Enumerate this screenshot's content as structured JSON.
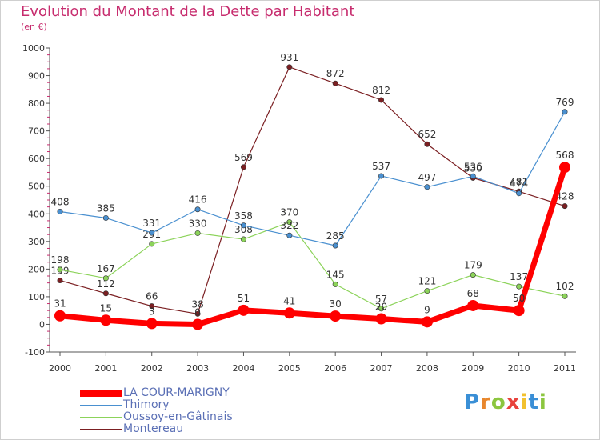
{
  "header": {
    "title": "Evolution du Montant de la Dette par Habitant",
    "subtitle": "(en €)"
  },
  "logo": {
    "text": "Proxiti",
    "letter_colors": [
      "#3a8fd6",
      "#e8872d",
      "#8cc63f",
      "#e8423c",
      "#f2c12e",
      "#3a8fd6",
      "#8cc63f"
    ]
  },
  "chart_data": {
    "type": "line",
    "title": "Evolution du Montant de la Dette par Habitant",
    "subtitle": "(en €)",
    "x": [
      "2000",
      "2001",
      "2002",
      "2003",
      "2004",
      "2005",
      "2006",
      "2007",
      "2008",
      "2009",
      "2010",
      "2011"
    ],
    "ylim": [
      -100,
      1000
    ],
    "yticks": [
      "-100",
      "0",
      "100",
      "200",
      "300",
      "400",
      "500",
      "600",
      "700",
      "800",
      "900",
      "1000"
    ],
    "grid": false,
    "legend_position": "bottom-left",
    "series": [
      {
        "name": "Montereau",
        "color": "#7b1f22",
        "values": [
          159,
          112,
          66,
          38,
          569,
          931,
          872,
          812,
          652,
          530,
          481,
          428
        ],
        "labels": [
          "159",
          "112",
          "66",
          "38",
          "569",
          "931",
          "872",
          "812",
          "652",
          "530",
          "481",
          "428"
        ]
      },
      {
        "name": "Oussoy-en-Gâtinais",
        "color": "#8cd35a",
        "values": [
          198,
          167,
          291,
          330,
          308,
          370,
          145,
          57,
          121,
          179,
          137,
          102
        ],
        "labels": [
          "198",
          "167",
          "291",
          "330",
          "308",
          "370",
          "145",
          "57",
          "121",
          "179",
          "137",
          "102"
        ]
      },
      {
        "name": "Thimory",
        "color": "#4a90d0",
        "values": [
          408,
          385,
          331,
          416,
          358,
          322,
          285,
          537,
          497,
          536,
          474,
          769
        ],
        "labels": [
          "408",
          "385",
          "331",
          "416",
          "358",
          "322",
          "285",
          "537",
          "497",
          "536",
          "474",
          "769"
        ]
      },
      {
        "name": "LA COUR-MARIGNY",
        "color": "#ff0000",
        "values": [
          31,
          15,
          3,
          0,
          51,
          41,
          30,
          20,
          9,
          68,
          50,
          568
        ],
        "labels": [
          "31",
          "15",
          "3",
          "0",
          "51",
          "41",
          "30",
          "20",
          "9",
          "68",
          "50",
          "568"
        ]
      }
    ],
    "legend": [
      {
        "name": "LA COUR-MARIGNY",
        "color": "#ff0000"
      },
      {
        "name": "Thimory",
        "color": "#4a90d0"
      },
      {
        "name": "Oussoy-en-Gâtinais",
        "color": "#8cd35a"
      },
      {
        "name": "Montereau",
        "color": "#7b1f22"
      }
    ]
  }
}
